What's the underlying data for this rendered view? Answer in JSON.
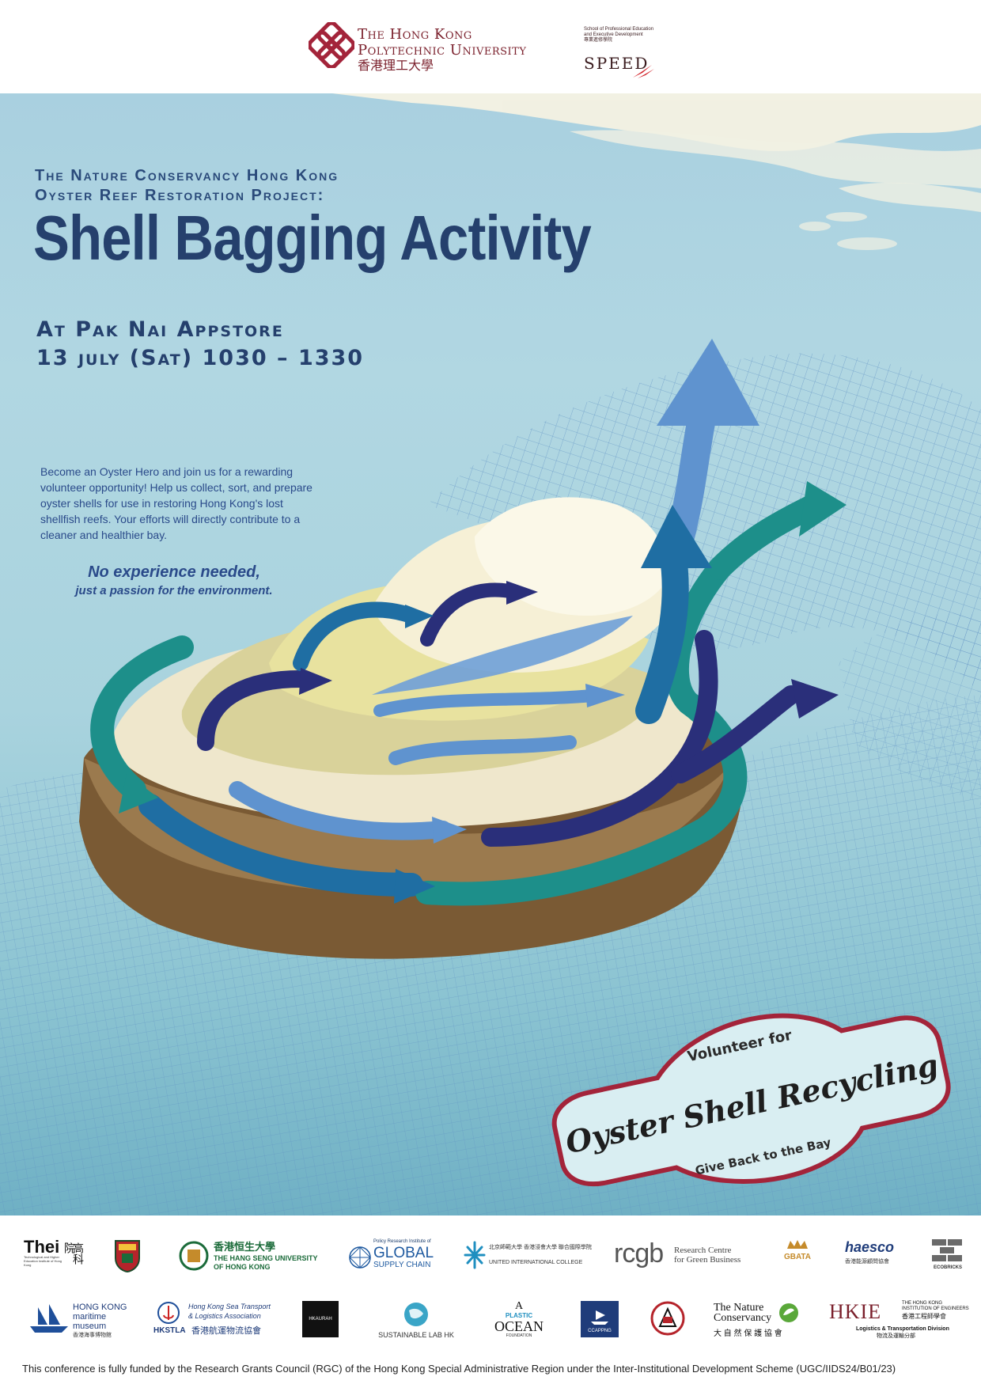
{
  "header": {
    "polyu": {
      "line1": "The Hong Kong",
      "line2": "Polytechnic University",
      "line3": "香港理工大學"
    },
    "speed": {
      "line1": "School of Professional Education",
      "line2": "and Executive Development",
      "line3": "專業進修學院",
      "word": "SPEED"
    }
  },
  "poster": {
    "eyebrow_line1": "The Nature Conservancy Hong Kong",
    "eyebrow_line2": "Oyster Reef Restoration Project:",
    "title": "Shell Bagging Activity",
    "venue": "At Pak Nai Appstore",
    "date": "13 july (Sat) 1030 – 1330",
    "intro": "Become an Oyster Hero and join us for a rewarding volunteer opportunity! Help us collect, sort, and prepare oyster shells for use in restoring Hong Kong's lost shellfish reefs. Your efforts will directly contribute to a cleaner and healthier bay.",
    "cta_main": "No experience needed,",
    "cta_sub": "just a passion for the environment.",
    "badge": {
      "top": "Volunteer for",
      "main": "Oyster Shell Recycling",
      "bottom": "Give Back to the Bay"
    }
  },
  "logos": {
    "thei_name": "Thei",
    "thei_cn": "高科院",
    "thei_sub": "Technological and Higher Education Institute of Hong Kong",
    "hsu_cn": "香港恒生大學",
    "hsu_en1": "THE HANG SENG UNIVERSITY",
    "hsu_en2": "OF HONG KONG",
    "global_top": "Policy Research Institute of",
    "global_word": "GLOBAL",
    "global_sub": "SUPPLY CHAIN",
    "uic_cn": "北京師範大學 香港浸會大學 聯合國際學院",
    "uic_en": "UNITED INTERNATIONAL COLLEGE",
    "rcgb_word": "rcgb",
    "rcgb_line1": "Research Centre",
    "rcgb_line2": "for Green Business",
    "gbata": "GBATA",
    "haesco": "haesco",
    "haesco_cn": "香港能源顧問協會",
    "ecobricks": "ECOBRICKS",
    "maritime_en": "HONG KONG maritime museum",
    "maritime_cn": "香港海事博物館",
    "hkstla_line1": "Hong Kong Sea Transport",
    "hkstla_line2": "& Logistics Association",
    "hkstla_abbr": "HKSTLA",
    "hkstla_cn": "香港航運物流協會",
    "hkaurah": "HKAURAH",
    "sustainable": "SUSTAINABLE LAB HK",
    "plastic_a": "A",
    "plastic_word": "PLASTIC",
    "plastic_ocean": "OCEAN",
    "plastic_found": "FOUNDATION",
    "ccappng": "CCAPPNG",
    "tnc_line1": "The Nature",
    "tnc_line2": "Conservancy",
    "tnc_cn": "大 自 然 保 護 協 會",
    "hkie_mark": "HKIE",
    "hkie_line1": "THE HONG KONG",
    "hkie_line2": "INSTITUTION OF ENGINEERS",
    "hkie_cn": "香港工程師學會",
    "hkie_div": "Logistics & Transportation Division",
    "hkie_div_cn": "物流及運輸分部"
  },
  "footnote": "This conference is fully funded by the Research Grants Council (RGC) of the Hong Kong Special Administrative Region under the Inter-Institutional Development Scheme (UGC/IIDS24/B01/23)"
}
